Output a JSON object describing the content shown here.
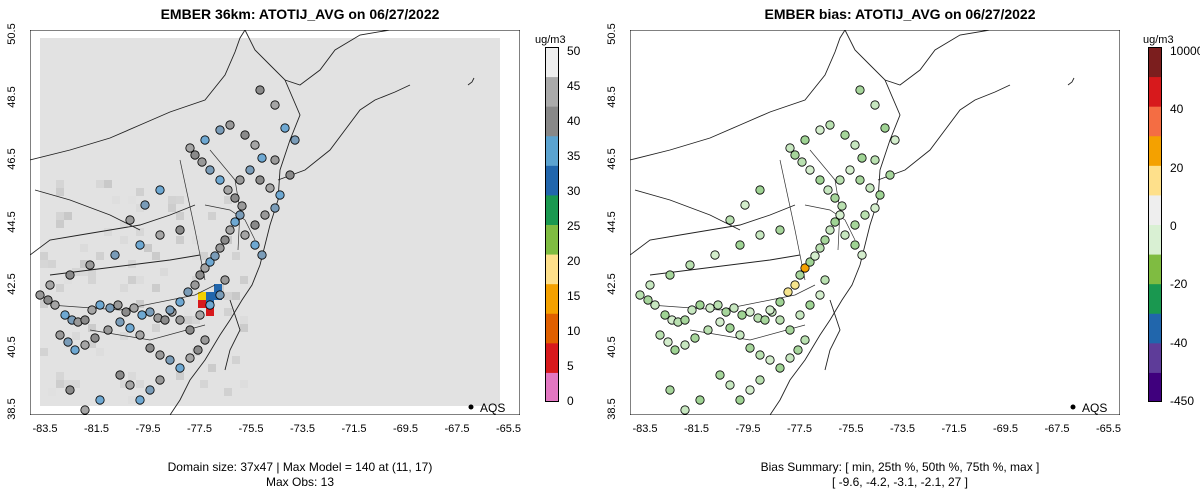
{
  "left": {
    "title": "EMBER 36km: ATOTIJ_AVG on 06/27/2022",
    "unit": "ug/m3",
    "legend": "AQS",
    "caption1": "Domain size: 37x47 | Max Model = 140 at (11, 17)",
    "caption2": "Max Obs: 13",
    "colorbar": {
      "min": 0,
      "max": 50,
      "ticks": [
        "0",
        "5",
        "10",
        "15",
        "20",
        "25",
        "30",
        "35",
        "40",
        "45",
        "50"
      ],
      "colors": [
        "#eeeeee",
        "#aaaaaa",
        "#888888",
        "#5ba3d0",
        "#2166ac",
        "#1a9850",
        "#7fbc41",
        "#fee08b",
        "#f4a100",
        "#e06000",
        "#d7191c",
        "#e377c2"
      ]
    }
  },
  "right": {
    "title": "EMBER bias: ATOTIJ_AVG on 06/27/2022",
    "unit": "ug/m3",
    "legend": "AQS",
    "caption1": "Bias Summary: [ min, 25th %, 50th %, 75th %, max ]",
    "caption2": "[ -9.6,   -4.2,   -3.1,   -2.1,   27 ]",
    "colorbar": {
      "ticks": [
        "10000",
        "40",
        "20",
        "0",
        "-20",
        "-40",
        "-450"
      ],
      "colors": [
        "#7b1e1e",
        "#d7191c",
        "#f46d43",
        "#f4a100",
        "#fee08b",
        "#eeeeee",
        "#d9f0d3",
        "#7fbc41",
        "#1a9850",
        "#2166ac",
        "#5e3c99",
        "#3f007d"
      ]
    }
  },
  "map": {
    "x_ticks": [
      "-83.5",
      "-81.5",
      "-79.5",
      "-77.5",
      "-75.5",
      "-73.5",
      "-71.5",
      "-69.5",
      "-67.5",
      "-65.5"
    ],
    "y_ticks": [
      "38.5",
      "40.5",
      "42.5",
      "44.5",
      "46.5",
      "48.5",
      "50.5"
    ],
    "lon_range": [
      -84.5,
      -65
    ],
    "lat_range": [
      38.2,
      50.6
    ]
  }
}
